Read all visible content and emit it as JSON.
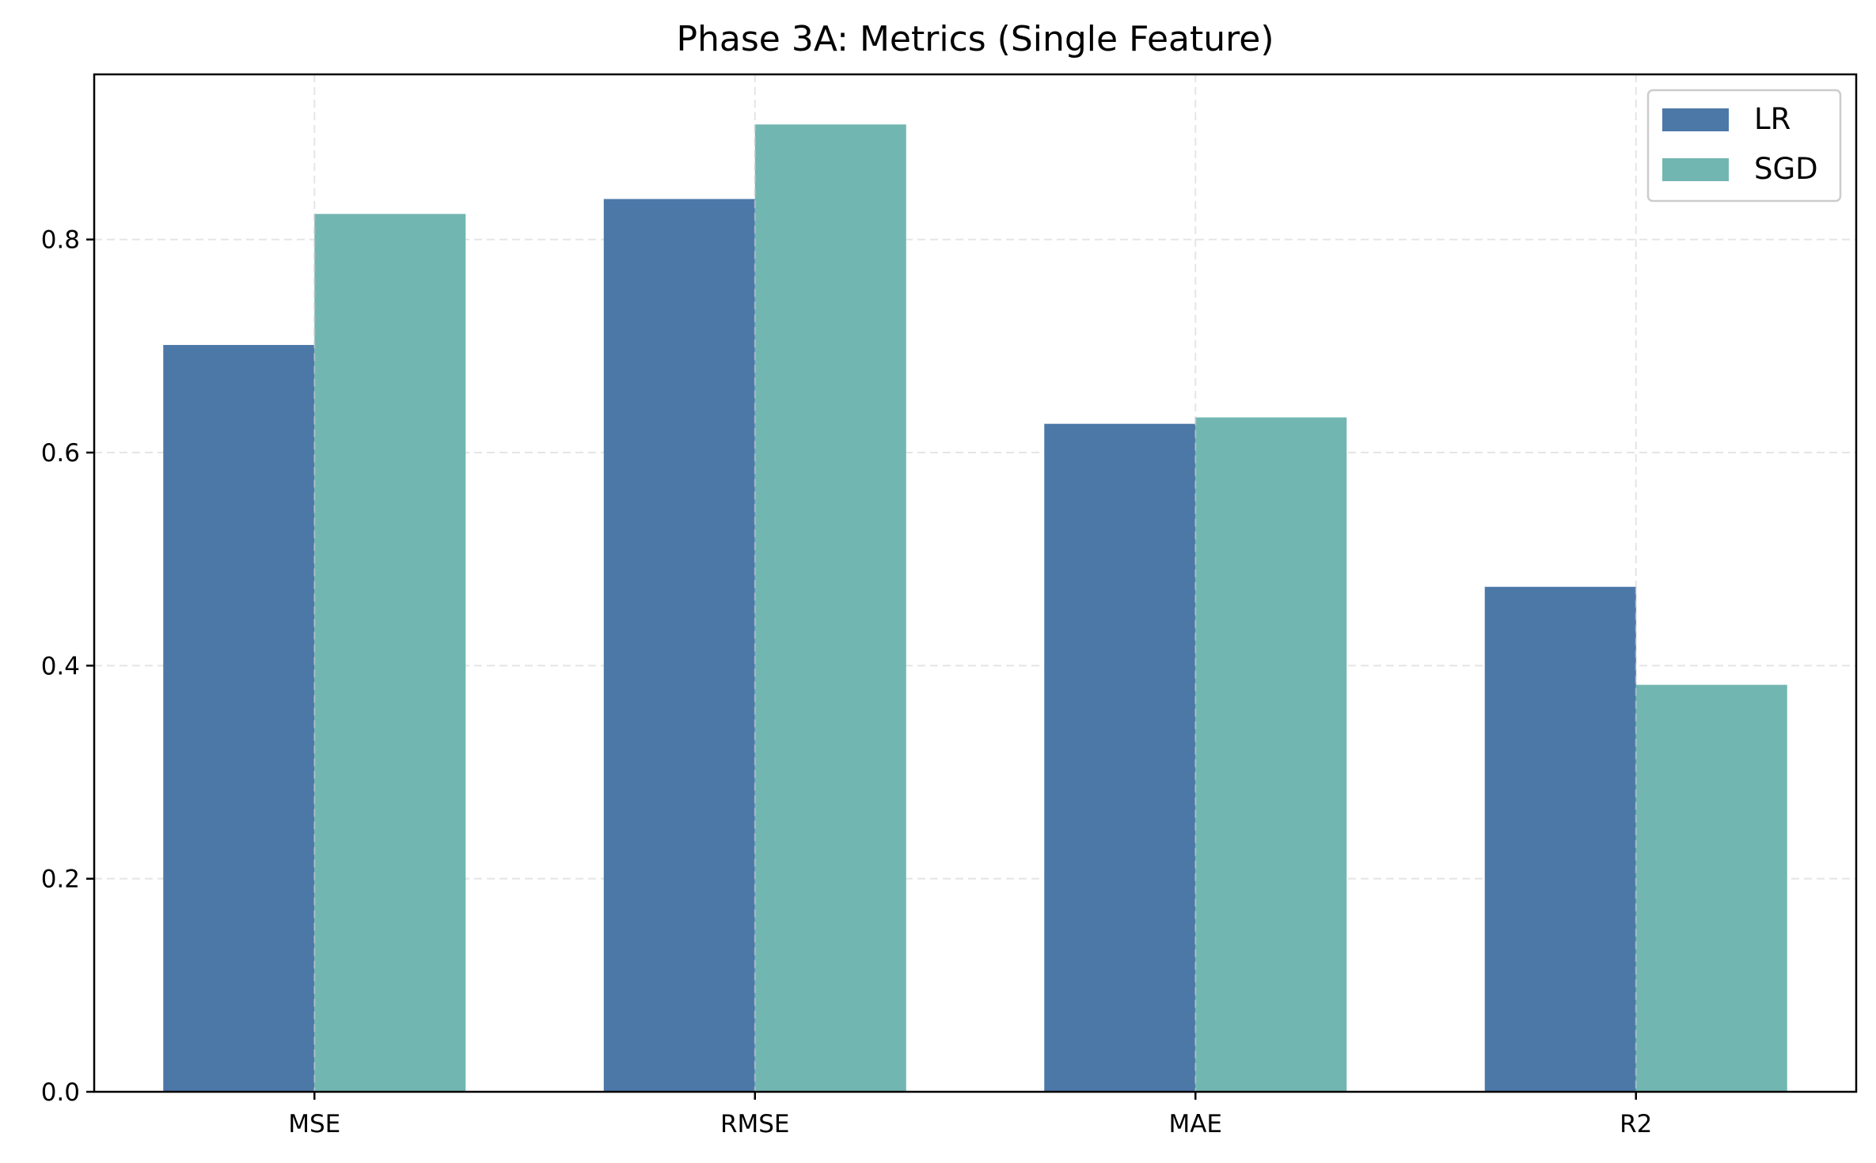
{
  "chart_data": {
    "type": "bar",
    "title": "Phase 3A: Metrics (Single Feature)",
    "xlabel": "",
    "ylabel": "",
    "categories": [
      "MSE",
      "RMSE",
      "MAE",
      "R2"
    ],
    "series": [
      {
        "name": "LR",
        "values": [
          0.701,
          0.838,
          0.627,
          0.474
        ],
        "color": "#4c78a8"
      },
      {
        "name": "SGD",
        "values": [
          0.824,
          0.908,
          0.633,
          0.382
        ],
        "color": "#72b6b1"
      }
    ],
    "ylim": [
      0.0,
      0.955
    ],
    "yticks": [
      0.0,
      0.2,
      0.4,
      0.6,
      0.8
    ],
    "ytick_labels": [
      "0.0",
      "0.2",
      "0.4",
      "0.6",
      "0.8"
    ],
    "grid": true,
    "legend_position": "top-right"
  }
}
